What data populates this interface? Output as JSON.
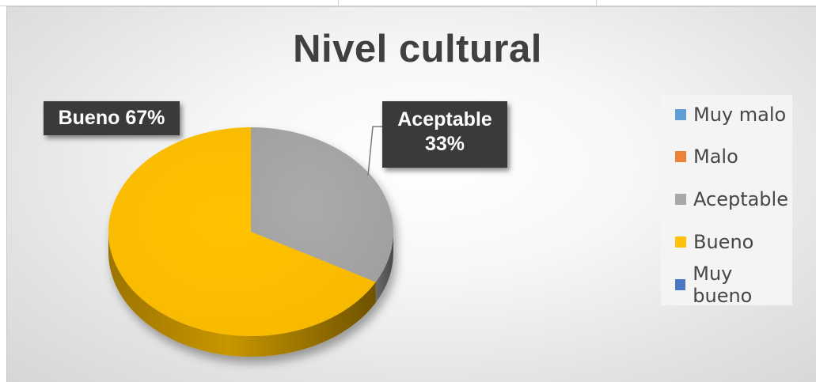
{
  "chart_data": {
    "type": "pie",
    "title": "Nivel cultural",
    "categories": [
      "Muy malo",
      "Malo",
      "Aceptable",
      "Bueno",
      "Muy bueno"
    ],
    "values": [
      0,
      0,
      33,
      67,
      0
    ],
    "colors": [
      "#5b9bd5",
      "#ed7d31",
      "#a5a5a5",
      "#ffc000",
      "#4472c4"
    ],
    "style": "3d",
    "legend_position": "right",
    "data_labels": [
      {
        "category": "Bueno",
        "text": "Bueno 67%"
      },
      {
        "category": "Aceptable",
        "line1": "Aceptable",
        "line2": "33%"
      }
    ]
  }
}
